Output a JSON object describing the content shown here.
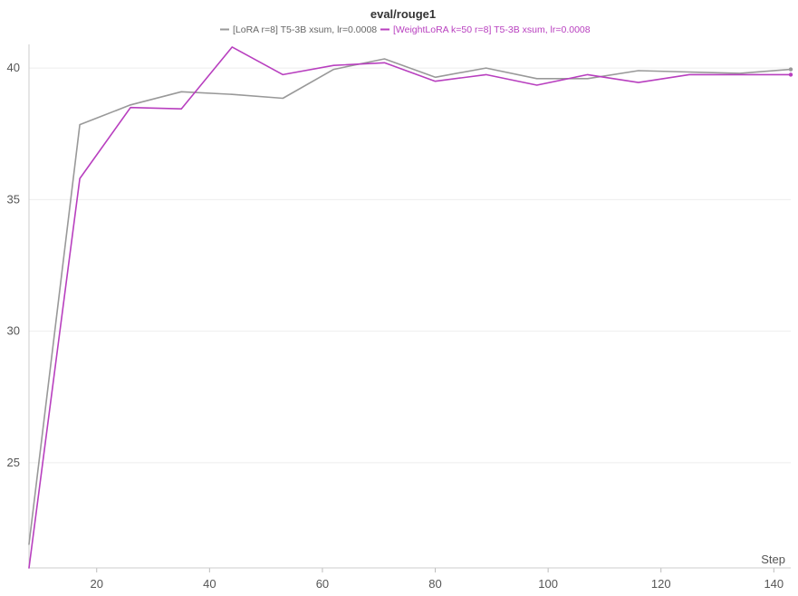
{
  "chart_data": {
    "type": "line",
    "title": "eval/rouge1",
    "xlabel": "Step",
    "ylabel": "",
    "xlim": [
      8,
      143
    ],
    "ylim": [
      21,
      40.9
    ],
    "xticks": [
      20,
      40,
      60,
      80,
      100,
      120,
      140
    ],
    "yticks": [
      25,
      30,
      35,
      40
    ],
    "grid": true,
    "legend_position": "top-center",
    "series": [
      {
        "name": "[LoRA r=8] T5-3B xsum, lr=0.0008",
        "color": "#999999",
        "x": [
          8,
          17,
          26,
          35,
          44,
          53,
          62,
          71,
          80,
          89,
          98,
          107,
          116,
          125,
          134,
          143
        ],
        "y": [
          21.9,
          37.85,
          38.6,
          39.1,
          39.0,
          38.85,
          39.95,
          40.35,
          39.65,
          40.0,
          39.6,
          39.6,
          39.9,
          39.85,
          39.8,
          39.95
        ]
      },
      {
        "name": "[WeightLoRA k=50 r=8] T5-3B xsum, lr=0.0008",
        "color": "#b83fbf",
        "x": [
          8,
          17,
          26,
          35,
          44,
          53,
          62,
          71,
          80,
          89,
          98,
          107,
          116,
          125,
          134,
          143
        ],
        "y": [
          21.0,
          35.8,
          38.5,
          38.45,
          40.8,
          39.75,
          40.1,
          40.2,
          39.5,
          39.75,
          39.35,
          39.75,
          39.45,
          39.75,
          39.75,
          39.75
        ]
      }
    ]
  }
}
